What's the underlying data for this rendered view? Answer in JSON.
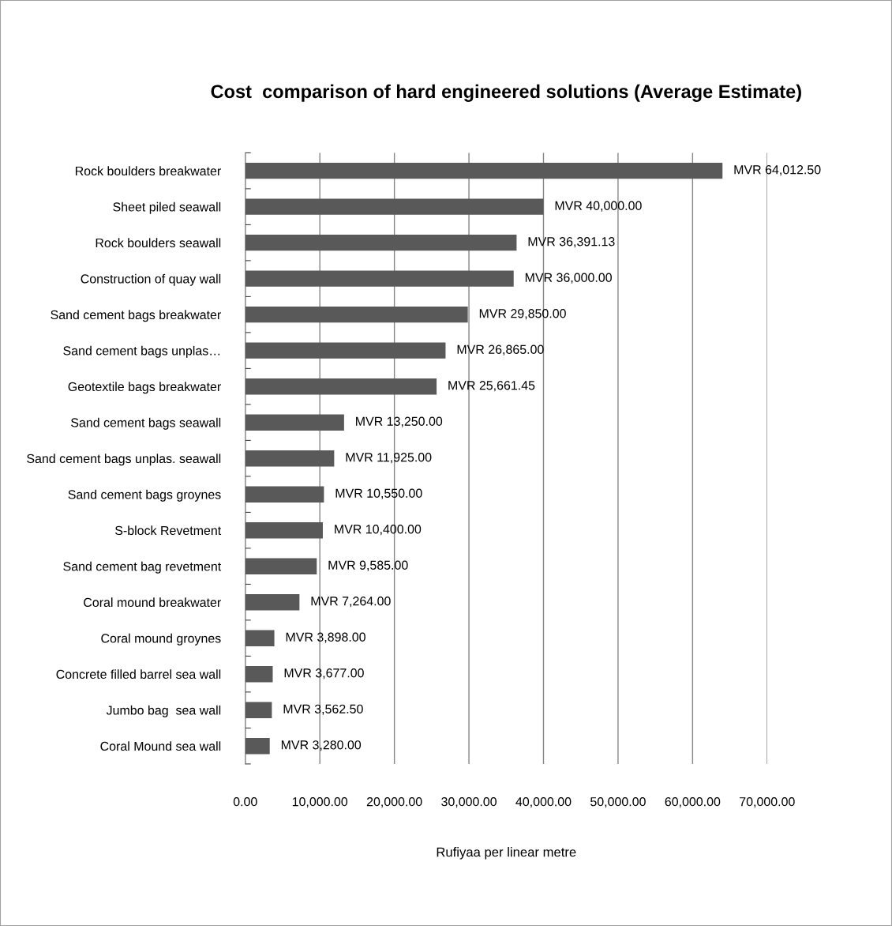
{
  "chart_data": {
    "type": "bar",
    "orientation": "horizontal",
    "title": "Cost  comparison of hard engineered solutions (Average Estimate)",
    "xlabel": "Rufiyaa per linear metre",
    "categories": [
      "Rock boulders breakwater",
      "Sheet piled seawall",
      "Rock boulders seawall",
      "Construction of quay wall",
      "Sand cement bags breakwater",
      "Sand cement bags unplas…",
      "Geotextile bags breakwater",
      "Sand cement bags seawall",
      "Sand cement bags unplas. seawall",
      "Sand cement bags groynes",
      "S-block Revetment",
      "Sand cement bag revetment",
      "Coral mound breakwater",
      "Coral mound groynes",
      "Concrete filled barrel sea wall",
      "Jumbo bag  sea wall",
      "Coral Mound sea wall"
    ],
    "values": [
      64012.5,
      40000,
      36391.13,
      36000,
      29850,
      26865,
      25661.45,
      13250,
      11925,
      10550,
      10400,
      9585,
      7264,
      3898,
      3677,
      3562.5,
      3280
    ],
    "value_labels": [
      "MVR 64,012.50",
      "MVR 40,000.00",
      "MVR 36,391.13",
      "MVR 36,000.00",
      "MVR 29,850.00",
      "MVR 26,865.00",
      "MVR 25,661.45",
      "MVR 13,250.00",
      "MVR 11,925.00",
      "MVR 10,550.00",
      "MVR 10,400.00",
      "MVR 9,585.00",
      "MVR 7,264.00",
      "MVR 3,898.00",
      "MVR 3,677.00",
      "MVR 3,562.50",
      "MVR 3,280.00"
    ],
    "color": "#595959",
    "xlim": [
      0,
      70000
    ],
    "xticks": [
      {
        "value": 0,
        "label": "0.00"
      },
      {
        "value": 10000,
        "label": "10,000.00"
      },
      {
        "value": 20000,
        "label": "20,000.00"
      },
      {
        "value": 30000,
        "label": "30,000.00"
      },
      {
        "value": 40000,
        "label": "40,000.00"
      },
      {
        "value": 50000,
        "label": "50,000.00"
      },
      {
        "value": 60000,
        "label": "60,000.00"
      },
      {
        "value": 70000,
        "label": "70,000.00"
      }
    ],
    "grid": "x",
    "legend": false
  }
}
